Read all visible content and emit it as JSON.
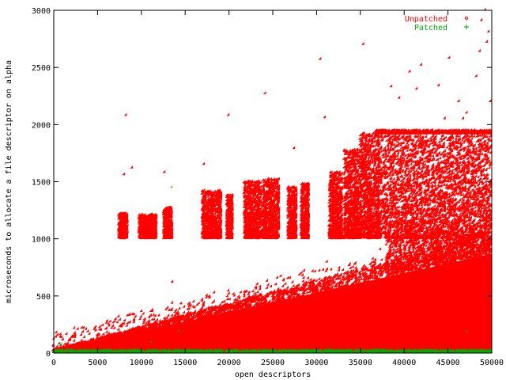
{
  "chart_data": {
    "type": "scatter",
    "title": "",
    "xlabel": "open descriptors",
    "ylabel": "microseconds to allocate a file descriptor on alpha",
    "xlim": [
      0,
      50000
    ],
    "ylim": [
      0,
      3000
    ],
    "x_ticks": [
      0,
      5000,
      10000,
      15000,
      20000,
      25000,
      30000,
      35000,
      40000,
      45000,
      50000
    ],
    "y_ticks": [
      0,
      500,
      1000,
      1500,
      2000,
      2500,
      3000
    ],
    "x_tick_labels": [
      "0",
      "5000",
      "10000",
      "15000",
      "20000",
      "25000",
      "30000",
      "35000",
      "40000",
      "45000",
      "50000"
    ],
    "y_tick_labels": [
      "0",
      "500",
      "1000",
      "1500",
      "2000",
      "2500",
      "3000"
    ],
    "grid": false,
    "legend_position": "top-right",
    "series": [
      {
        "name": "Unpatched",
        "color": "#ff0000",
        "marker": "diamond",
        "description_points": "dense band rising linearly from ~20 us at 0 to ~900 us at 50000 descriptors, plus clusters near 1000-1500 us and a band near 1930 us beyond 37000",
        "clusters": [
          {
            "x": [
              7500,
              8500
            ],
            "y": [
              1000,
              1220
            ]
          },
          {
            "x": [
              9800,
              11800
            ],
            "y": [
              1000,
              1210
            ]
          },
          {
            "x": [
              12600,
              13600
            ],
            "y": [
              1000,
              1270
            ]
          },
          {
            "x": [
              17000,
              19200
            ],
            "y": [
              1000,
              1420
            ]
          },
          {
            "x": [
              19800,
              20500
            ],
            "y": [
              1000,
              1380
            ]
          },
          {
            "x": [
              21800,
              23800
            ],
            "y": [
              1000,
              1500
            ]
          },
          {
            "x": [
              23900,
              25800
            ],
            "y": [
              1000,
              1520
            ]
          },
          {
            "x": [
              26800,
              27800
            ],
            "y": [
              1000,
              1450
            ]
          },
          {
            "x": [
              28300,
              29200
            ],
            "y": [
              1000,
              1480
            ]
          },
          {
            "x": [
              31500,
              33000
            ],
            "y": [
              1000,
              1580
            ]
          },
          {
            "x": [
              33200,
              35000
            ],
            "y": [
              1000,
              1780
            ]
          },
          {
            "x": [
              35000,
              37200
            ],
            "y": [
              1000,
              1920
            ]
          },
          {
            "x": [
              37000,
              50000
            ],
            "y": [
              1000,
              1900
            ]
          }
        ],
        "band_1930": {
          "x": [
            36800,
            50000
          ],
          "y": 1930
        },
        "outliers": [
          [
            8300,
            2080
          ],
          [
            9000,
            1620
          ],
          [
            8100,
            1560
          ],
          [
            12700,
            1580
          ],
          [
            17200,
            1650
          ],
          [
            20000,
            2080
          ],
          [
            24200,
            2270
          ],
          [
            27500,
            1790
          ],
          [
            30500,
            2570
          ],
          [
            31000,
            2060
          ],
          [
            35400,
            2700
          ],
          [
            38600,
            2330
          ],
          [
            39500,
            2230
          ],
          [
            40700,
            2460
          ],
          [
            41500,
            2310
          ],
          [
            42000,
            2520
          ],
          [
            44000,
            2340
          ],
          [
            48300,
            2420
          ],
          [
            48700,
            2640
          ],
          [
            49300,
            3000
          ],
          [
            48900,
            2910
          ],
          [
            49700,
            2810
          ],
          [
            49500,
            2720
          ],
          [
            46300,
            2200
          ],
          [
            49900,
            2200
          ],
          [
            47200,
            2100
          ],
          [
            45200,
            2580
          ],
          [
            44700,
            2050
          ],
          [
            46800,
            2050
          ],
          [
            16900,
            300
          ],
          [
            17800,
            330
          ],
          [
            13600,
            620
          ],
          [
            12900,
            180
          ]
        ]
      },
      {
        "name": "Patched",
        "color": "#00aa00",
        "marker": "plus",
        "description_points": "flat band at ~0-40 us across 0-50000 descriptors",
        "outliers": [
          [
            13500,
            1450
          ],
          [
            14300,
            195
          ],
          [
            47200,
            190
          ],
          [
            700,
            80
          ],
          [
            900,
            75
          ],
          [
            11200,
            95
          ]
        ]
      }
    ]
  }
}
